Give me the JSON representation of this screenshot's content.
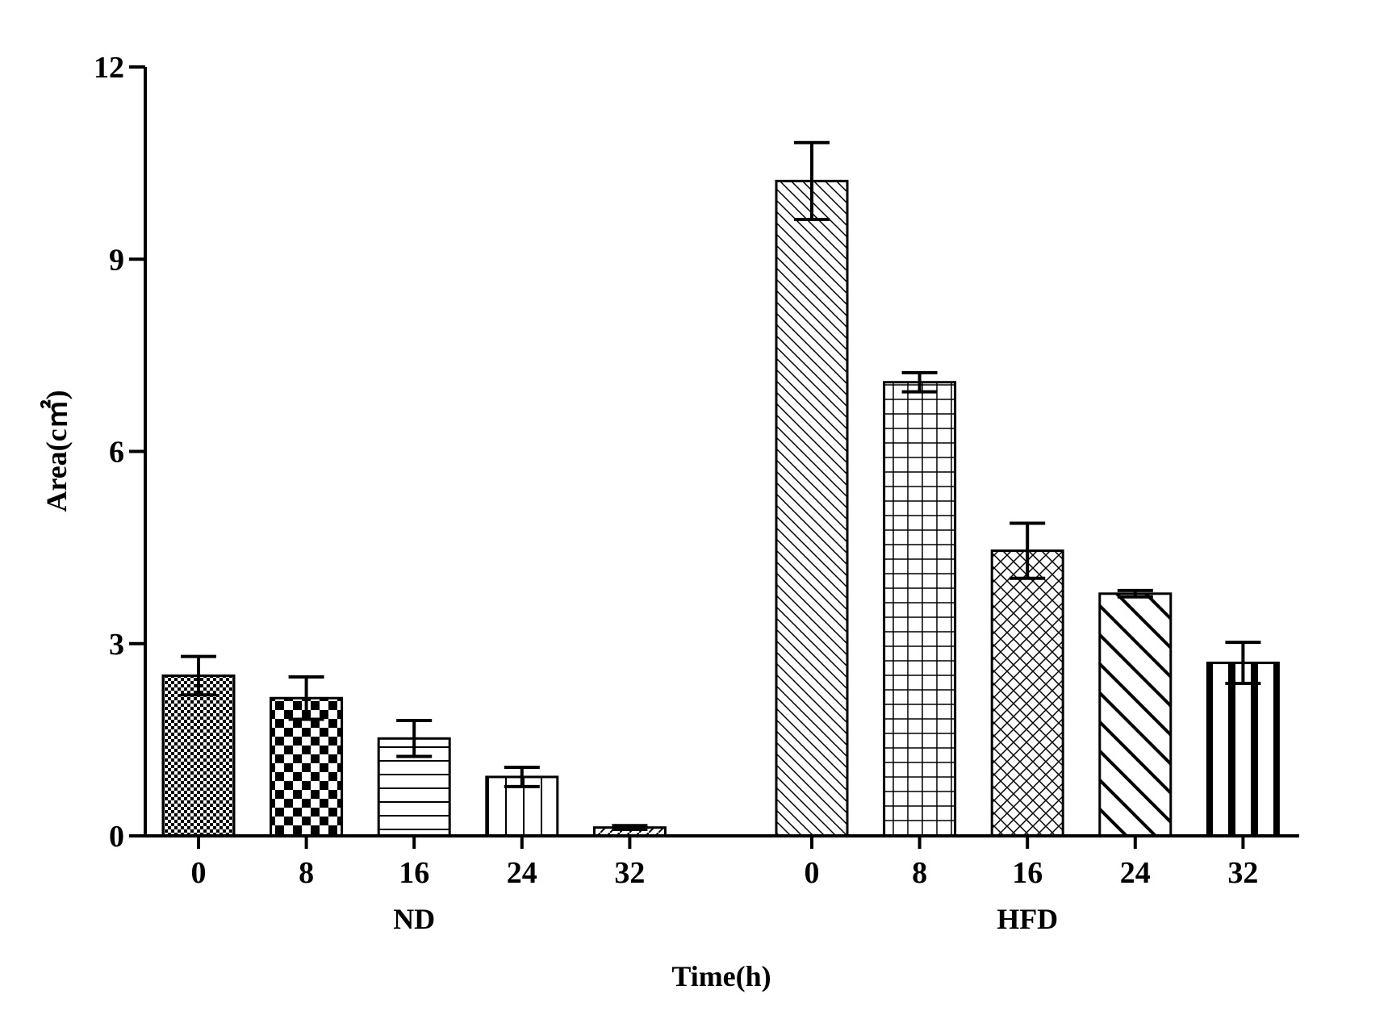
{
  "chart_data": {
    "type": "bar",
    "xlabel": "Time(h)",
    "ylabel": "Area(c㎡)",
    "ylim": [
      0,
      12
    ],
    "yticks": [
      "0",
      "3",
      "6",
      "9",
      "12"
    ],
    "grid": false,
    "groups": [
      {
        "name": "ND",
        "categories": [
          "0",
          "8",
          "16",
          "24",
          "32"
        ],
        "values": [
          2.5,
          2.15,
          1.52,
          0.92,
          0.13
        ],
        "errors": [
          0.3,
          0.33,
          0.28,
          0.15,
          0.03
        ],
        "patterns": [
          "fine-checker",
          "coarse-checker",
          "horizontal-lines",
          "vertical-lines",
          "diagonal-hatch"
        ]
      },
      {
        "name": "HFD",
        "categories": [
          "0",
          "8",
          "16",
          "24",
          "32"
        ],
        "values": [
          10.22,
          7.08,
          4.45,
          3.78,
          2.7
        ],
        "errors": [
          0.6,
          0.15,
          0.43,
          0.05,
          0.32
        ],
        "patterns": [
          "diagonal-back-lines",
          "grid",
          "cross-hatch",
          "wide-diagonal-lines",
          "thick-vertical-bars"
        ]
      }
    ]
  }
}
